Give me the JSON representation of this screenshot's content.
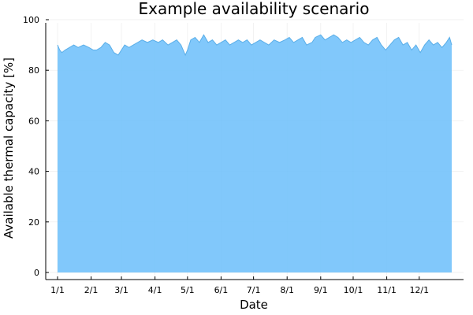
{
  "chart_data": {
    "type": "area",
    "title": "Example availability scenario",
    "xlabel": "Date",
    "ylabel": "Available thermal capacity [%]",
    "ylim": [
      0,
      100
    ],
    "yticks": [
      0,
      20,
      40,
      60,
      80,
      100
    ],
    "xlim": [
      "01-01",
      "12-31"
    ],
    "xticks": [
      "1/1",
      "2/1",
      "3/1",
      "4/1",
      "5/1",
      "6/1",
      "7/1",
      "8/1",
      "9/1",
      "10/1",
      "11/1",
      "12/1"
    ],
    "xtick_dates": [
      "01-01",
      "02-01",
      "03-01",
      "04-01",
      "05-01",
      "06-01",
      "07-01",
      "08-01",
      "09-01",
      "10-01",
      "11-01",
      "12-01"
    ],
    "grid": true,
    "legend": "none",
    "series": [
      {
        "color": "#73c2fb",
        "x": [
          "01-01",
          "01-03",
          "01-05",
          "01-08",
          "01-12",
          "01-16",
          "01-20",
          "01-25",
          "01-30",
          "02-03",
          "02-06",
          "02-10",
          "02-14",
          "02-18",
          "02-22",
          "02-26",
          "03-01",
          "03-04",
          "03-08",
          "03-12",
          "03-16",
          "03-20",
          "03-25",
          "03-30",
          "04-04",
          "04-08",
          "04-13",
          "04-17",
          "04-21",
          "04-25",
          "04-29",
          "05-01",
          "05-04",
          "05-08",
          "05-12",
          "05-16",
          "05-20",
          "05-24",
          "05-28",
          "06-01",
          "06-05",
          "06-09",
          "06-13",
          "06-17",
          "06-21",
          "06-25",
          "06-29",
          "07-03",
          "07-07",
          "07-11",
          "07-15",
          "07-20",
          "07-25",
          "07-30",
          "08-03",
          "08-07",
          "08-11",
          "08-15",
          "08-19",
          "08-24",
          "08-27",
          "09-01",
          "09-05",
          "09-09",
          "09-13",
          "09-17",
          "09-21",
          "09-25",
          "09-29",
          "10-03",
          "10-07",
          "10-11",
          "10-15",
          "10-19",
          "10-23",
          "10-27",
          "10-31",
          "11-04",
          "11-08",
          "11-12",
          "11-16",
          "11-20",
          "11-24",
          "11-28",
          "12-02",
          "12-06",
          "12-10",
          "12-14",
          "12-18",
          "12-22",
          "12-26",
          "12-29",
          "12-31"
        ],
        "y": [
          90,
          88,
          87,
          88,
          89,
          90,
          89,
          90,
          89,
          88,
          88,
          89,
          91,
          90,
          87,
          86,
          88,
          90,
          89,
          90,
          91,
          92,
          91,
          92,
          91,
          92,
          90,
          91,
          92,
          90,
          86,
          88,
          92,
          93,
          91,
          94,
          91,
          92,
          90,
          91,
          92,
          90,
          91,
          92,
          91,
          92,
          90,
          91,
          92,
          91,
          90,
          92,
          91,
          92,
          93,
          91,
          92,
          93,
          90,
          91,
          93,
          94,
          92,
          93,
          94,
          93,
          91,
          92,
          91,
          92,
          93,
          91,
          90,
          92,
          93,
          90,
          88,
          90,
          92,
          93,
          90,
          91,
          88,
          90,
          87,
          90,
          92,
          90,
          91,
          89,
          91,
          93,
          90
        ]
      }
    ]
  }
}
